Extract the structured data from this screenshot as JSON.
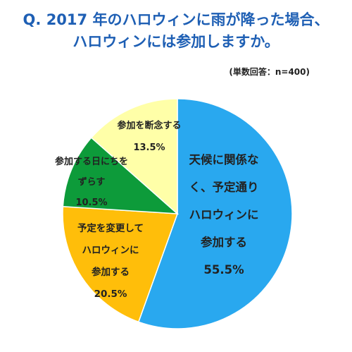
{
  "header": {
    "title_line1": "Q. 2017 年のハロウィンに雨が降った場合、",
    "title_line2": "ハロウィンには参加しますか。",
    "sample_note": "(単数回答：n=400)"
  },
  "chart_data": {
    "type": "pie",
    "title": "Q. 2017 年のハロウィンに雨が降った場合、ハロウィンには参加しますか。",
    "note": "(単数回答：n=400)",
    "slices": [
      {
        "label_lines": [
          "天候に関係な",
          "く、予定通り",
          "ハロウィンに",
          "参加する"
        ],
        "value": 55.5,
        "value_label": "55.5%",
        "color": "#29a8ef"
      },
      {
        "label_lines": [
          "予定を変更して",
          "ハロウィンに",
          "参加する"
        ],
        "value": 20.5,
        "value_label": "20.5%",
        "color": "#ffbe0a"
      },
      {
        "label_lines": [
          "参加する日にちを",
          "ずらす"
        ],
        "value": 10.5,
        "value_label": "10.5%",
        "color": "#0d9b3a"
      },
      {
        "label_lines": [
          "参加を断念する"
        ],
        "value": 13.5,
        "value_label": "13.5%",
        "color": "#ffffa8"
      }
    ],
    "start_angle_deg": 0,
    "direction": "clockwise"
  }
}
